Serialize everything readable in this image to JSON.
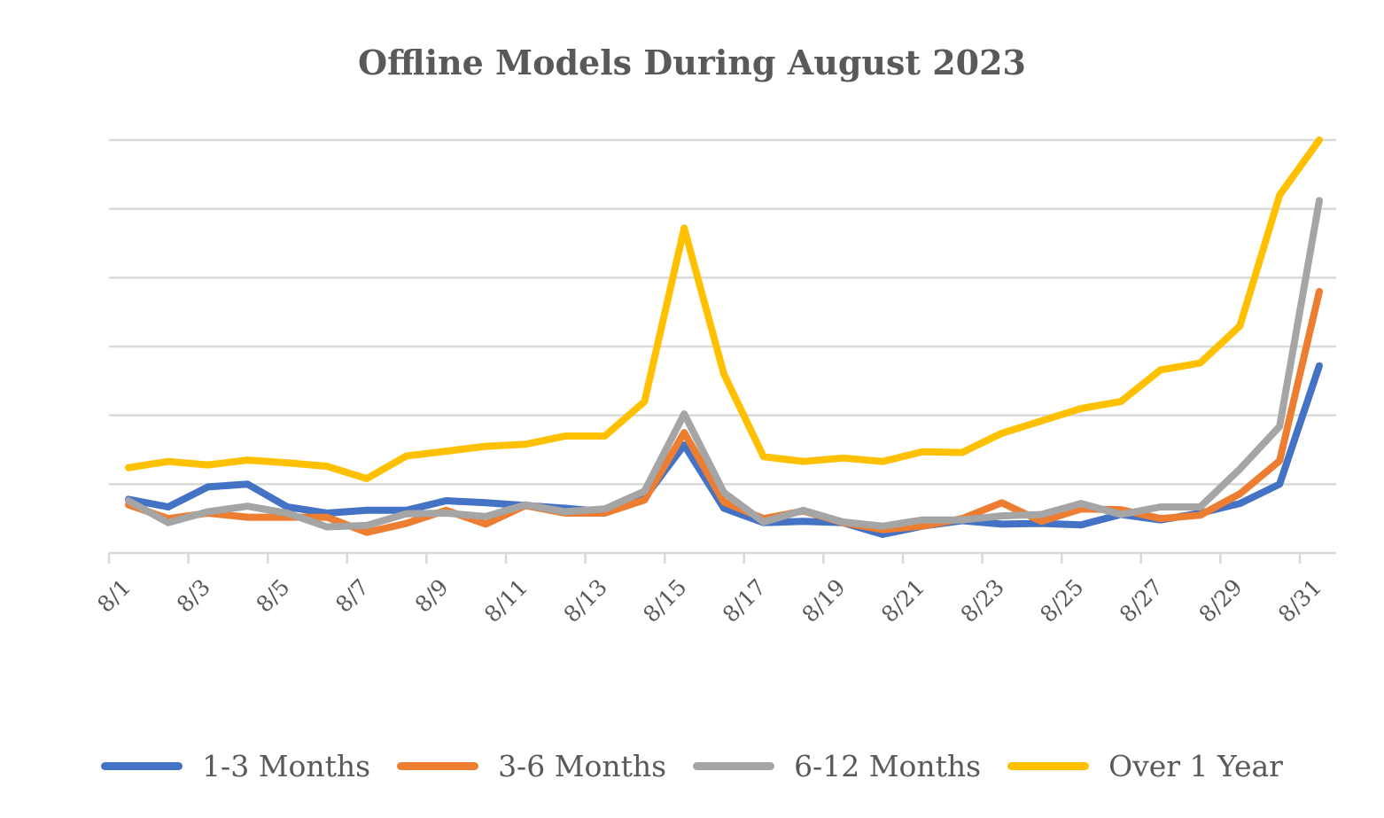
{
  "chart_data": {
    "type": "line",
    "title": "Offline Models During August 2023",
    "xlabel": "",
    "ylabel": "",
    "x": [
      "8/1",
      "8/2",
      "8/3",
      "8/4",
      "8/5",
      "8/6",
      "8/7",
      "8/8",
      "8/9",
      "8/10",
      "8/11",
      "8/12",
      "8/13",
      "8/14",
      "8/15",
      "8/16",
      "8/17",
      "8/18",
      "8/19",
      "8/20",
      "8/21",
      "8/22",
      "8/23",
      "8/24",
      "8/25",
      "8/26",
      "8/27",
      "8/28",
      "8/29",
      "8/30",
      "8/31"
    ],
    "tick_labels": [
      "8/1",
      "8/3",
      "8/5",
      "8/7",
      "8/9",
      "8/11",
      "8/13",
      "8/15",
      "8/17",
      "8/19",
      "8/21",
      "8/23",
      "8/25",
      "8/27",
      "8/29",
      "8/31"
    ],
    "ylim": [
      0,
      6
    ],
    "y_grid_lines": [
      0,
      1,
      2,
      3,
      4,
      5,
      6
    ],
    "grid": true,
    "legend_position": "bottom",
    "series": [
      {
        "name": "1-3 Months",
        "color": "#4472C4",
        "values": [
          0.78,
          0.67,
          0.96,
          1.0,
          0.67,
          0.58,
          0.62,
          0.62,
          0.76,
          0.73,
          0.69,
          0.65,
          0.6,
          0.8,
          1.57,
          0.65,
          0.44,
          0.46,
          0.44,
          0.27,
          0.39,
          0.47,
          0.42,
          0.43,
          0.41,
          0.56,
          0.48,
          0.58,
          0.72,
          1.0,
          2.72
        ]
      },
      {
        "name": "3-6 Months",
        "color": "#ED7D31",
        "values": [
          0.7,
          0.5,
          0.58,
          0.52,
          0.52,
          0.52,
          0.3,
          0.43,
          0.62,
          0.42,
          0.69,
          0.58,
          0.58,
          0.77,
          1.75,
          0.74,
          0.5,
          0.61,
          0.44,
          0.34,
          0.39,
          0.5,
          0.73,
          0.46,
          0.64,
          0.63,
          0.5,
          0.55,
          0.86,
          1.34,
          3.8
        ]
      },
      {
        "name": "6-12 Months",
        "color": "#A5A5A5",
        "values": [
          0.76,
          0.44,
          0.6,
          0.68,
          0.58,
          0.38,
          0.4,
          0.57,
          0.58,
          0.53,
          0.7,
          0.6,
          0.64,
          0.9,
          2.02,
          0.88,
          0.45,
          0.62,
          0.45,
          0.39,
          0.48,
          0.48,
          0.54,
          0.56,
          0.72,
          0.56,
          0.67,
          0.67,
          1.22,
          1.84,
          5.12
        ]
      },
      {
        "name": "Over 1 Year",
        "color": "#FFC000",
        "values": [
          1.24,
          1.33,
          1.28,
          1.35,
          1.31,
          1.26,
          1.08,
          1.41,
          1.48,
          1.55,
          1.58,
          1.7,
          1.7,
          2.2,
          4.72,
          2.6,
          1.4,
          1.33,
          1.38,
          1.33,
          1.47,
          1.46,
          1.74,
          1.92,
          2.1,
          2.2,
          2.66,
          2.76,
          3.3,
          5.2,
          6.0
        ]
      }
    ]
  }
}
